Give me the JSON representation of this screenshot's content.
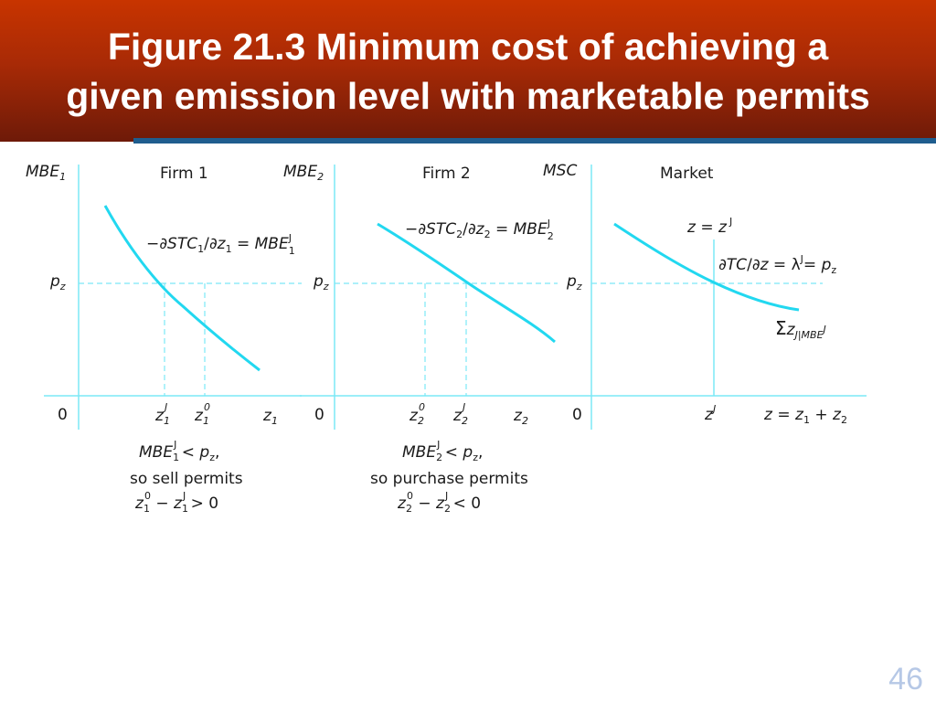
{
  "slide": {
    "title_line1": "Figure 21.3 Minimum cost of achieving a",
    "title_line2": "given emission level with marketable permits",
    "page_number": "46"
  },
  "colors": {
    "header": "#b02e04",
    "rule": "#1f5d8e",
    "curve": "#22d8f0",
    "axis": "#7ce8f6",
    "text": "#1a1a1a"
  },
  "panels": {
    "firm1": {
      "heading": "Firm 1",
      "y_axis": "MBE",
      "y_axis_sub": "1",
      "curve_label": "−∂STC",
      "curve_label_parts": {
        "a": "−∂",
        "b": "STC",
        "b_sub": "1",
        "c": "/∂",
        "d": "z",
        "d_sub": "1",
        "e": " = ",
        "f": "MBE",
        "f_sub": "1",
        "f_sup": "J"
      },
      "price": "p",
      "price_sub": "z",
      "origin": "0",
      "tick_zj": "z",
      "tick_zj_sub": "1",
      "tick_zj_sup": "J",
      "tick_z0": "z",
      "tick_z0_sub": "1",
      "tick_z0_sup": "0",
      "x_axis": "z",
      "x_axis_sub": "1",
      "caption_line1": {
        "a": "MBE",
        "a_sub": "1",
        "a_sup": "J",
        "b": " < ",
        "c": "p",
        "c_sub": "z",
        "d": ","
      },
      "caption_line2": "so sell permits",
      "caption_line3": {
        "a": "z",
        "a_sub": "1",
        "a_sup": "0",
        "b": " − ",
        "c": "z",
        "c_sub": "1",
        "c_sup": "J",
        "d": " > 0"
      }
    },
    "firm2": {
      "heading": "Firm 2",
      "y_axis": "MBE",
      "y_axis_sub": "2",
      "curve_label_parts": {
        "a": "−∂",
        "b": "STC",
        "b_sub": "2",
        "c": "/∂",
        "d": "z",
        "d_sub": "2",
        "e": " = ",
        "f": "MBE",
        "f_sub": "2",
        "f_sup": "J"
      },
      "price": "p",
      "price_sub": "z",
      "origin": "0",
      "tick_z0": "z",
      "tick_z0_sub": "2",
      "tick_z0_sup": "0",
      "tick_zj": "z",
      "tick_zj_sub": "2",
      "tick_zj_sup": "J",
      "x_axis": "z",
      "x_axis_sub": "2",
      "caption_line1": {
        "a": "MBE",
        "a_sub": "2",
        "a_sup": "J",
        "b": " < ",
        "c": "p",
        "c_sub": "z",
        "d": ","
      },
      "caption_line2": "so purchase permits",
      "caption_line3": {
        "a": "z",
        "a_sub": "2",
        "a_sup": "0",
        "b": " − ",
        "c": "z",
        "c_sub": "2",
        "c_sup": "J",
        "d": " < 0"
      }
    },
    "market": {
      "heading": "Market",
      "y_axis": "MSC",
      "z_eq": {
        "a": "z",
        "b": " = ",
        "c": "z",
        "c_sup": "J"
      },
      "curve_label_parts": {
        "a": "∂",
        "b": "TC",
        "c": "/∂",
        "d": "z",
        "e": " = λ",
        "e_sup": "J",
        "f": "= ",
        "g": "p",
        "g_sub": "z"
      },
      "sum_label": {
        "a": "Σ",
        "b": "z",
        "b_sub": "J|MBE",
        "b_sup": "J"
      },
      "price": "p",
      "price_sub": "z",
      "origin": "0",
      "tick_zj": "z",
      "tick_zj_sup": "J",
      "x_axis": {
        "a": "z",
        "b": " = ",
        "c": "z",
        "c_sub": "1",
        "d": " + ",
        "e": "z",
        "e_sub": "2"
      }
    }
  }
}
